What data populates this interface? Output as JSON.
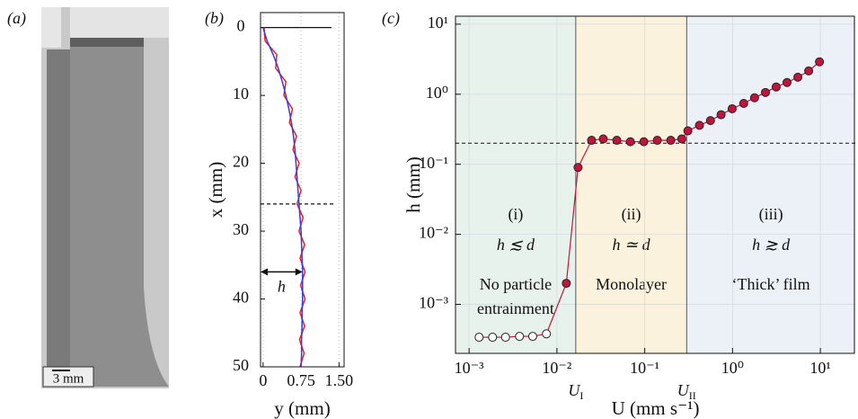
{
  "panel_a": {
    "label": "(a)",
    "scale_bar": "3 mm"
  },
  "chart_data": [
    {
      "type": "line",
      "panel_label": "(b)",
      "x_label": "x (mm)",
      "y_label": "y (mm)",
      "x": [
        0,
        2,
        4,
        6,
        8,
        10,
        12,
        14,
        16,
        18,
        20,
        22,
        24,
        26,
        28,
        30,
        32,
        34,
        36,
        38,
        40,
        42,
        44,
        46,
        48,
        50
      ],
      "series": [
        {
          "color": "#e8202a",
          "values": [
            0.02,
            0.04,
            0.27,
            0.25,
            0.45,
            0.41,
            0.58,
            0.52,
            0.66,
            0.59,
            0.71,
            0.63,
            0.75,
            0.67,
            0.79,
            0.71,
            0.82,
            0.73,
            0.83,
            0.74,
            0.83,
            0.73,
            0.82,
            0.72,
            0.81,
            0.73
          ]
        },
        {
          "color": "#3b3bd6",
          "values": [
            0,
            0.08,
            0.2,
            0.3,
            0.38,
            0.45,
            0.51,
            0.56,
            0.6,
            0.63,
            0.65,
            0.67,
            0.69,
            0.71,
            0.73,
            0.75,
            0.76,
            0.77,
            0.78,
            0.78,
            0.78,
            0.77,
            0.77,
            0.76,
            0.76,
            0.75
          ]
        }
      ],
      "xlim": [
        -2.2,
        50
      ],
      "xticks": [
        0,
        10,
        20,
        30,
        40,
        50
      ],
      "ylim": [
        -0.05,
        1.6
      ],
      "yticks": [
        0,
        0.75,
        {
          "value": 1.5,
          "label": "1.50"
        }
      ],
      "grid": true,
      "ref_lines": [
        {
          "x": 0,
          "style": "solid"
        },
        {
          "x": 26,
          "style": "dashed"
        }
      ],
      "annotations": [
        {
          "text": "h",
          "x": 36,
          "y": 0.78
        }
      ]
    },
    {
      "type": "scatter",
      "panel_label": "(c)",
      "x_label": "U (mm s⁻¹)",
      "y_label": "h (mm)",
      "log_x": true,
      "log_y": true,
      "xlim": [
        0.0007,
        25
      ],
      "ylim": [
        0.0002,
        13
      ],
      "xticks": [
        {
          "value": 0.001,
          "label": "10⁻³"
        },
        {
          "value": 0.01,
          "label": "10⁻²"
        },
        {
          "value": 0.1,
          "label": "10⁻¹"
        },
        {
          "value": 1,
          "label": "10⁰"
        },
        {
          "value": 10,
          "label": "10¹"
        }
      ],
      "yticks": [
        {
          "value": 0.001,
          "label": "10⁻³"
        },
        {
          "value": 0.01,
          "label": "10⁻²"
        },
        {
          "value": 0.1,
          "label": "10⁻¹"
        },
        {
          "value": 1,
          "label": "10⁰"
        },
        {
          "value": 10,
          "label": "10¹"
        }
      ],
      "grid": true,
      "hline": 0.2,
      "regime_lines": [
        {
          "value": 0.0164,
          "label": "U",
          "subscript": "I"
        },
        {
          "value": 0.3,
          "label": "U",
          "subscript": "II"
        }
      ],
      "regions": [
        {
          "color": "#e8f2ec",
          "texts": [
            "(i)",
            "h ≲ d",
            "No particle",
            "entrainment"
          ]
        },
        {
          "color": "#fbf2de",
          "texts": [
            "(ii)",
            "h ≃ d",
            "Monolayer"
          ]
        },
        {
          "color": "#ecf0f7",
          "texts": [
            "(iii)",
            "h ≳ d",
            "‘Thick’ film"
          ]
        }
      ],
      "series": [
        {
          "color": "#c0143c",
          "x": [
            0.0013,
            0.00185,
            0.0026,
            0.00375,
            0.0053,
            0.0076,
            0.0128,
            0.0174,
            0.0248,
            0.0337,
            0.0481,
            0.0686,
            0.0977,
            0.139,
            0.198,
            0.264,
            0.31,
            0.42,
            0.56,
            0.74,
            0.99,
            1.34,
            1.78,
            2.37,
            3.14,
            4.17,
            5.54,
            7.36,
            9.77
          ],
          "values": [
            0.00034,
            0.00034,
            0.00034,
            0.00035,
            0.00035,
            0.00038,
            0.002,
            0.09,
            0.22,
            0.23,
            0.22,
            0.21,
            0.21,
            0.22,
            0.22,
            0.23,
            0.3,
            0.36,
            0.42,
            0.51,
            0.62,
            0.74,
            0.89,
            1.06,
            1.27,
            1.47,
            1.75,
            2.15,
            2.9
          ],
          "marker_colors": [
            "#ffffff",
            "#ffffff",
            "#ffffff",
            "#ffffff",
            "#ffffff",
            "#ffffff",
            "#c0143c",
            "#c0143c",
            "#c0143c",
            "#c0143c",
            "#c0143c",
            "#c0143c",
            "#c0143c",
            "#c0143c",
            "#c0143c",
            "#c0143c",
            "#c0143c",
            "#c0143c",
            "#c0143c",
            "#c0143c",
            "#c0143c",
            "#c0143c",
            "#c0143c",
            "#c0143c",
            "#c0143c",
            "#c0143c",
            "#c0143c",
            "#c0143c",
            "#c0143c"
          ]
        }
      ]
    }
  ]
}
